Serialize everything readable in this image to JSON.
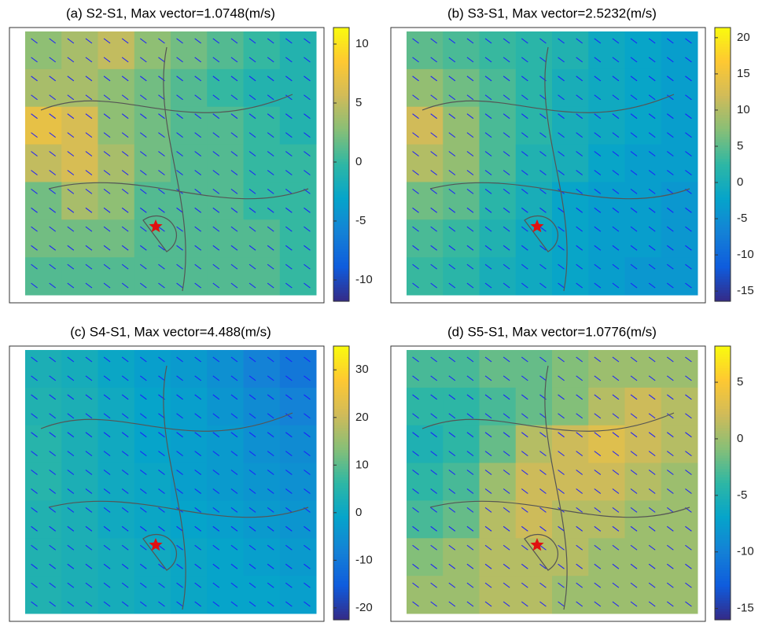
{
  "chart_data": [
    {
      "type": "heatmap",
      "title": "(a) S2-S1, Max vector=1.0748(m/s)",
      "zlim": [
        -11.8,
        11.4
      ],
      "zticks": [
        10,
        5,
        0,
        -5,
        -10
      ],
      "values": [
        [
          3,
          4,
          5,
          3,
          2,
          1,
          0,
          -1
        ],
        [
          4,
          4,
          3,
          2,
          1,
          0,
          -1,
          -1
        ],
        [
          7,
          6,
          3,
          2,
          1,
          1,
          0,
          -1
        ],
        [
          5,
          6,
          4,
          2,
          1,
          1,
          0,
          0
        ],
        [
          2,
          4,
          3,
          1,
          1,
          1,
          0,
          0
        ],
        [
          2,
          2,
          2,
          1,
          1,
          1,
          1,
          0
        ],
        [
          1,
          1,
          1,
          1,
          1,
          1,
          1,
          0
        ]
      ]
    },
    {
      "type": "heatmap",
      "title": "(b) S3-S1, Max vector=2.5232(m/s)",
      "zlim": [
        -16.4,
        21.4
      ],
      "zticks": [
        20,
        15,
        10,
        5,
        0,
        -5,
        -10,
        -15
      ],
      "values": [
        [
          5,
          4,
          3,
          2,
          1,
          -1,
          -2,
          -3
        ],
        [
          8,
          6,
          4,
          2,
          0,
          -1,
          -2,
          -3
        ],
        [
          12,
          8,
          4,
          2,
          0,
          -1,
          -2,
          -3
        ],
        [
          10,
          8,
          4,
          1,
          0,
          -2,
          -3,
          -3
        ],
        [
          6,
          5,
          2,
          0,
          -2,
          -3,
          -3,
          -4
        ],
        [
          4,
          3,
          1,
          -1,
          -2,
          -3,
          -3,
          -4
        ],
        [
          3,
          2,
          0,
          -1,
          -2,
          -3,
          -4,
          -4
        ]
      ]
    },
    {
      "type": "heatmap",
      "title": "(c) S4-S1, Max vector=4.488(m/s)",
      "zlim": [
        -22.5,
        35
      ],
      "zticks": [
        30,
        20,
        10,
        0,
        -10,
        -20
      ],
      "values": [
        [
          3,
          2,
          0,
          -2,
          -3,
          -5,
          -8,
          -10
        ],
        [
          4,
          3,
          1,
          -1,
          -2,
          -4,
          -6,
          -8
        ],
        [
          5,
          3,
          1,
          -1,
          -2,
          -3,
          -5,
          -6
        ],
        [
          5,
          3,
          1,
          0,
          -2,
          -3,
          -4,
          -5
        ],
        [
          4,
          3,
          1,
          0,
          -1,
          -2,
          -3,
          -4
        ],
        [
          4,
          3,
          2,
          1,
          0,
          -1,
          -2,
          -3
        ],
        [
          4,
          3,
          2,
          1,
          0,
          -1,
          -1,
          -2
        ]
      ]
    },
    {
      "type": "heatmap",
      "title": "(d) S5-S1, Max vector=1.0776(m/s)",
      "zlim": [
        -16,
        8.2
      ],
      "zticks": [
        5,
        0,
        -5,
        -10,
        -15
      ],
      "values": [
        [
          -3,
          -3,
          -2,
          -2,
          -1,
          0,
          0,
          0
        ],
        [
          -4,
          -4,
          -3,
          -2,
          -1,
          1,
          2,
          1
        ],
        [
          -5,
          -4,
          -2,
          1,
          2,
          3,
          2,
          1
        ],
        [
          -4,
          -3,
          0,
          2,
          2,
          2,
          1,
          0
        ],
        [
          -3,
          -2,
          1,
          2,
          1,
          1,
          0,
          0
        ],
        [
          -1,
          0,
          1,
          1,
          1,
          0,
          0,
          0
        ],
        [
          0,
          0,
          1,
          1,
          0,
          0,
          0,
          0
        ]
      ]
    }
  ]
}
